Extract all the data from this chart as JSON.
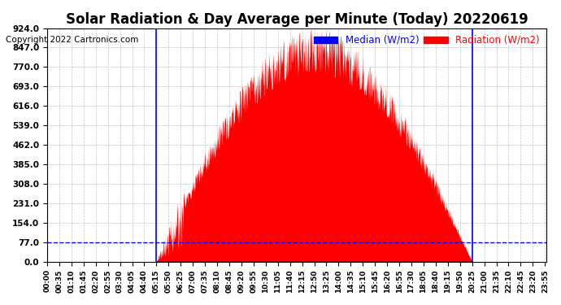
{
  "title": "Solar Radiation & Day Average per Minute (Today) 20220619",
  "copyright": "Copyright 2022 Cartronics.com",
  "legend_median": "Median (W/m2)",
  "legend_radiation": "Radiation (W/m2)",
  "ymin": 0.0,
  "ymax": 924.0,
  "ytick_step": 77.0,
  "background_color": "#ffffff",
  "plot_bg_color": "#ffffff",
  "grid_color": "#aaaaaa",
  "radiation_color": "#ff0000",
  "median_color": "#0000ff",
  "box_color": "#0000ff",
  "title_fontsize": 12,
  "copyright_fontsize": 7.5,
  "legend_fontsize": 8.5,
  "tick_fontsize": 6.5,
  "ytick_fontsize": 7.5,
  "sunrise_min": 315,
  "sunset_min": 1225,
  "median_value": 77.0,
  "total_minutes": 1440,
  "xtick_interval": 35
}
